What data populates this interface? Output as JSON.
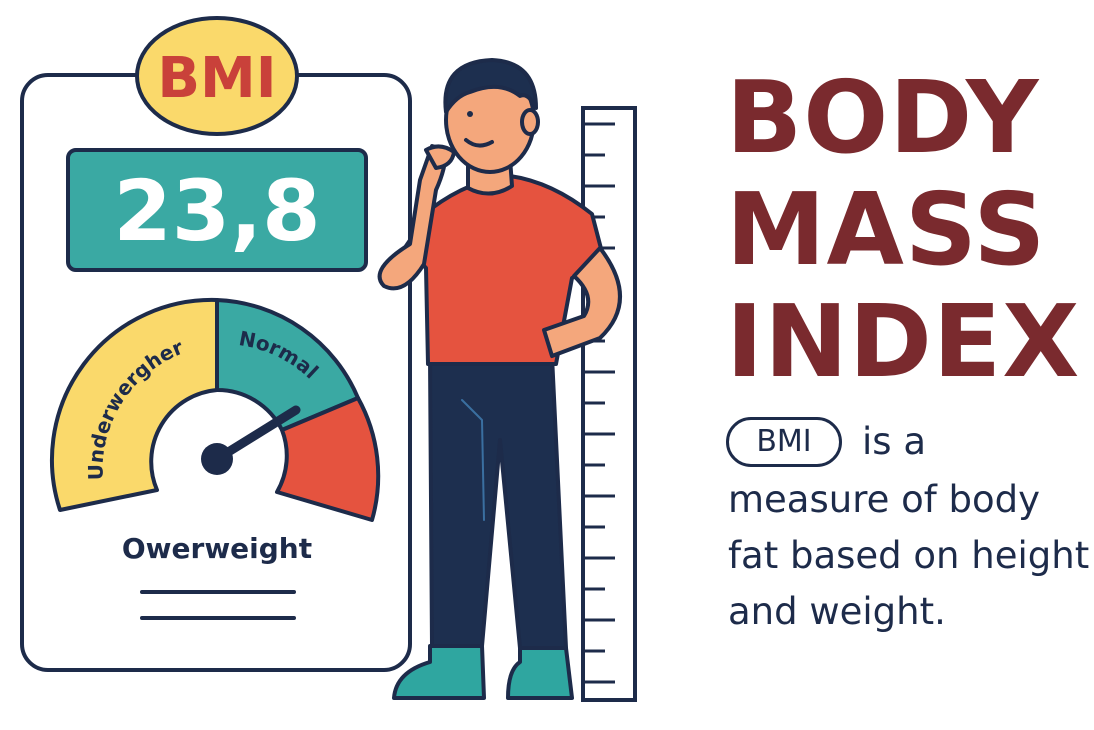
{
  "card": {
    "badge": "BMI",
    "value": "23,8",
    "gauge": {
      "segment_left": "Underwergher",
      "segment_mid": "Normal",
      "label_below": "Owerweight"
    }
  },
  "title": {
    "line1": "BODY",
    "line2": "MASS",
    "line3": "INDEX"
  },
  "description": {
    "pill": "BMI",
    "line1": "is a",
    "line2": "measure of body",
    "line3": "fat based on height",
    "line4": "and weight."
  },
  "colors": {
    "title": "#7a2a2e",
    "badge_fill": "#fad96b",
    "badge_text": "#c9413a",
    "value_box": "#3aa9a3",
    "gauge_yellow": "#fad96b",
    "gauge_teal": "#3aa9a3",
    "gauge_red": "#e5533f",
    "shirt": "#e5533f",
    "pants": "#1d2f4f",
    "shoes": "#2fa6a0"
  }
}
